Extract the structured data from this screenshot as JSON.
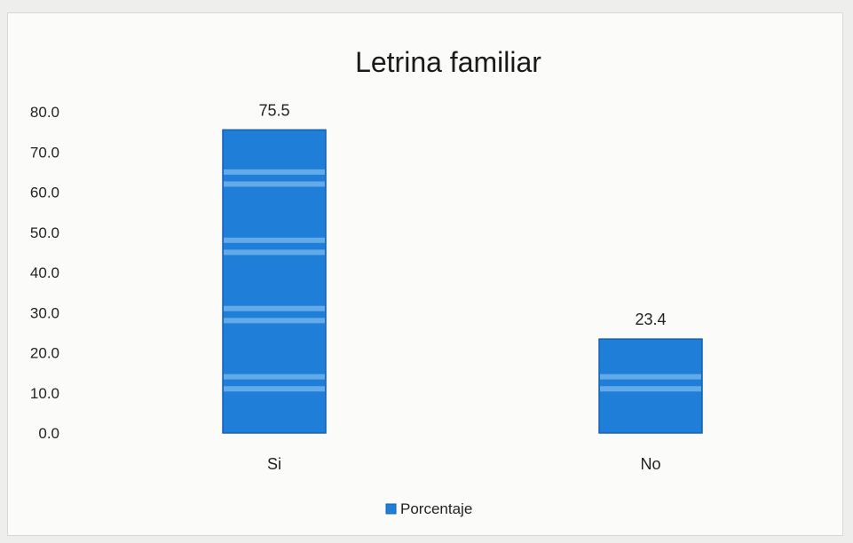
{
  "chart_data": {
    "type": "bar",
    "title": "Letrina familiar",
    "categories": [
      "Si",
      "No"
    ],
    "series": [
      {
        "name": "Porcentaje",
        "values": [
          75.5,
          23.4
        ]
      }
    ],
    "data_labels": [
      "75.5",
      "23.4"
    ],
    "y_ticks": [
      "0.0",
      "10.0",
      "20.0",
      "30.0",
      "40.0",
      "50.0",
      "60.0",
      "70.0",
      "80.0"
    ],
    "ylim": [
      0,
      80
    ],
    "xlabel": "",
    "ylabel": "",
    "grid": false,
    "legend": "bottom",
    "colors": {
      "bar": "#1f7fd8",
      "bar_stripe": "#7ab8ee",
      "bar_edge": "#1560b0"
    }
  }
}
